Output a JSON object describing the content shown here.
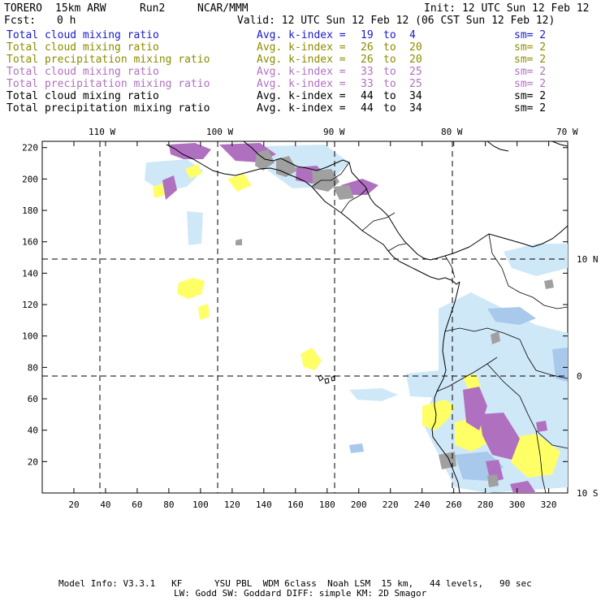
{
  "header": {
    "model": "TORERO",
    "resolution": "15km ARW",
    "run": "Run2",
    "org": "NCAR/MMM",
    "init": "Init: 12 UTC Sun 12 Feb 12",
    "fcst_label": "Fcst:",
    "fcst_value": "0 h",
    "valid": "Valid: 12 UTC Sun 12 Feb 12 (06 CST Sun 12 Feb 12)"
  },
  "fields": [
    {
      "name": "Total cloud mixing ratio",
      "label": "Avg. k-index =",
      "from": "19",
      "to_word": "to",
      "to": "4",
      "sm": "sm= 2",
      "color": "#1a1acc"
    },
    {
      "name": "Total cloud mixing ratio",
      "label": "Avg. k-index =",
      "from": "26",
      "to_word": "to",
      "to": "20",
      "sm": "sm= 2",
      "color": "#8c8c00"
    },
    {
      "name": "Total precipitation mixing ratio",
      "label": "Avg. k-index =",
      "from": "26",
      "to_word": "to",
      "to": "20",
      "sm": "sm= 2",
      "color": "#8c8c00"
    },
    {
      "name": "Total cloud mixing ratio",
      "label": "Avg. k-index =",
      "from": "33",
      "to_word": "to",
      "to": "25",
      "sm": "sm= 2",
      "color": "#b070c0"
    },
    {
      "name": "Total precipitation mixing ratio",
      "label": "Avg. k-index =",
      "from": "33",
      "to_word": "to",
      "to": "25",
      "sm": "sm= 2",
      "color": "#b070c0"
    },
    {
      "name": "Total cloud mixing ratio",
      "label": "Avg. k-index =",
      "from": "44",
      "to_word": "to",
      "to": "34",
      "sm": "sm= 2",
      "color": "#000000"
    },
    {
      "name": "Total precipitation mixing ratio",
      "label": "Avg. k-index =",
      "from": "44",
      "to_word": "to",
      "to": "34",
      "sm": "sm= 2",
      "color": "#000000"
    }
  ],
  "map": {
    "x_ticks": [
      "20",
      "40",
      "60",
      "80",
      "100",
      "120",
      "140",
      "160",
      "180",
      "200",
      "220",
      "240",
      "260",
      "280",
      "300",
      "320"
    ],
    "y_ticks": [
      "20",
      "40",
      "60",
      "80",
      "100",
      "120",
      "140",
      "160",
      "180",
      "200",
      "220"
    ],
    "lon_labels": [
      "110 W",
      "100 W",
      "90 W",
      "80 W",
      "70 W"
    ],
    "lat_labels": [
      "10 N",
      "0",
      "10 S"
    ],
    "colors": {
      "light_blue": "#cfe8f8",
      "blue": "#a8c8ec",
      "yellow": "#ffff66",
      "purple": "#b070c0",
      "gray": "#a0a0a0",
      "grid": "#000000"
    }
  },
  "footer": {
    "line1": "Model Info: V3.3.1   KF      YSU PBL  WDM 6class  Noah LSM  15 km,   44 levels,   90 sec",
    "line2": "LW: Godd SW: Goddard DIFF: simple KM: 2D Smagor"
  }
}
